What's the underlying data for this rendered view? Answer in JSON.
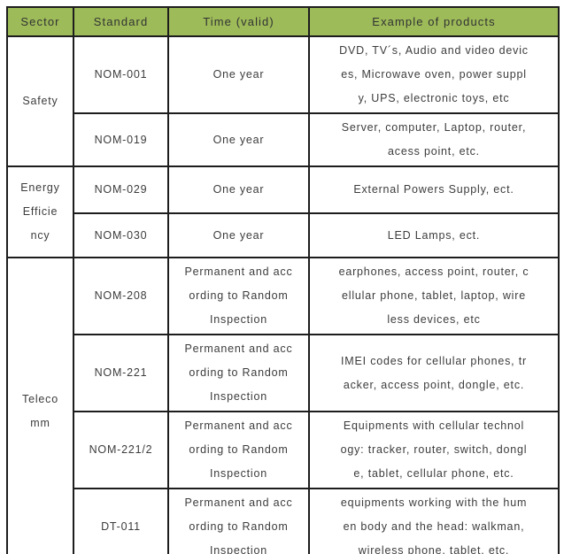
{
  "colors": {
    "header_bg": "#9dbb59",
    "border": "#1d1d1d",
    "header_text": "#333333",
    "body_text": "#3c3c3c",
    "page_bg": "#ffffff"
  },
  "table": {
    "headers": [
      "Sector",
      "Standard",
      "Time (valid)",
      "Example of products"
    ],
    "sections": [
      {
        "sector": "Safety",
        "rows": [
          {
            "standard": "NOM-001",
            "time": "One year",
            "products": "DVD, TV´s, Audio and video devic\nes, Microwave oven, power suppl\ny, UPS, electronic toys, etc"
          },
          {
            "standard": "NOM-019",
            "time": "One year",
            "products": "Server, computer, Laptop, router,\nacess point, etc."
          }
        ]
      },
      {
        "sector": "Energy\nEfficie\nncy",
        "rows": [
          {
            "standard": "NOM-029",
            "time": "One year",
            "products": "External Powers Supply, ect."
          },
          {
            "standard": "NOM-030",
            "time": "One year",
            "products": "LED Lamps, ect."
          }
        ]
      },
      {
        "sector": "Teleco\nmm",
        "rows": [
          {
            "standard": "NOM-208",
            "time": "Permanent and acc\nording to Random\nInspection",
            "products": "earphones, access point, router, c\nellular phone, tablet, laptop, wire\nless devices, etc"
          },
          {
            "standard": "NOM-221",
            "time": "Permanent and acc\nording to Random\nInspection",
            "products": "IMEI codes for cellular phones, tr\nacker, access point, dongle, etc."
          },
          {
            "standard": "NOM-221/2",
            "time": "Permanent and acc\nording to Random\nInspection",
            "products": "Equipments with cellular technol\nogy: tracker, router, switch, dongl\ne, tablet, cellular phone, etc."
          },
          {
            "standard": "DT-011",
            "time": "Permanent and acc\nording to Random\nInspection",
            "products": "equipments working with the hum\nen body and the head: walkman,\nwireless phone, tablet, etc."
          }
        ]
      }
    ]
  }
}
